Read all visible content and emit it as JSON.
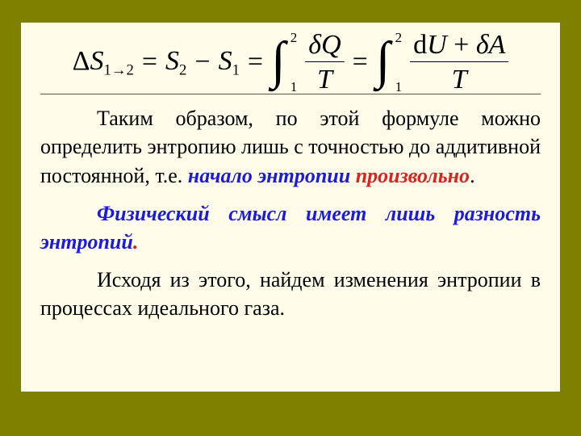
{
  "colors": {
    "outer_bg": "#808000",
    "inner_bg": "#fffde9",
    "text": "#000000",
    "highlight_blue": "#1a1ae0",
    "highlight_red": "#e02020",
    "rule": "#5c5c45"
  },
  "typography": {
    "body_font": "Times New Roman",
    "body_size_pt": 20,
    "formula_size_pt": 26
  },
  "formula": {
    "lhs_delta": "Δ",
    "lhs_S": "S",
    "lhs_sub": "1→2",
    "eq": "=",
    "S2": "S",
    "S2_sub": "2",
    "minus": "−",
    "S1": "S",
    "S1_sub": "1",
    "int_lower": "1",
    "int_upper": "2",
    "frac1_num_delta": "δ",
    "frac1_num_Q": "Q",
    "frac1_den": "T",
    "frac2_num_d": "d",
    "frac2_num_U": "U",
    "frac2_num_plus": " + ",
    "frac2_num_delta": "δ",
    "frac2_num_A": "A",
    "frac2_den": "T"
  },
  "text": {
    "p1a": "Таким образом, по этой формуле можно определить энтропию лишь с точностью до аддитивной постоянной, т.е. ",
    "p1b_blue": "начало энтропии",
    "p1b_red": " произвольно",
    "p1c": ".",
    "p2_blue": "Физический смысл имеет лишь разность энтропий",
    "p2_dot": ".",
    "p3": "Исходя из этого, найдем изменения энтропии в процессах идеального газа."
  }
}
